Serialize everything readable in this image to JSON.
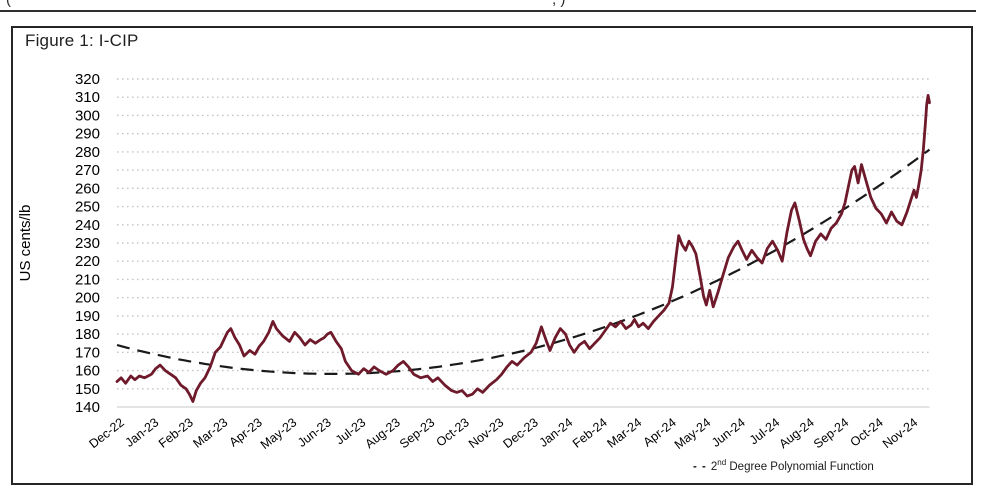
{
  "top_fragments": {
    "left": "(",
    "mid": ", )"
  },
  "figure": {
    "title": "Figure 1: I-CIP"
  },
  "legend": {
    "dash": "- -",
    "prefix": "2",
    "sup": "nd",
    "rest": " Degree Polynomial Function"
  },
  "colors": {
    "series": "#6e1a2b",
    "trend": "#1a1a1a",
    "grid": "#c6c6c6",
    "axis": "#d2d2d2",
    "text": "#000000"
  },
  "chart_data": {
    "type": "line",
    "title": "Figure 1: I-CIP",
    "xlabel": "",
    "ylabel": "US cents/lb",
    "ylim": [
      140,
      320
    ],
    "y_tick_step": 10,
    "y_ticks": [
      320,
      310,
      300,
      290,
      280,
      270,
      260,
      250,
      240,
      230,
      220,
      210,
      200,
      190,
      180,
      170,
      160,
      150,
      140
    ],
    "x_labels": [
      "Dec-22",
      "Jan-23",
      "Feb-23",
      "Mar-23",
      "Apr-23",
      "May-23",
      "Jun-23",
      "Jul-23",
      "Aug-23",
      "Sep-23",
      "Oct-23",
      "Nov-23",
      "Dec-23",
      "Jan-24",
      "Feb-24",
      "Mar-24",
      "Apr-24",
      "May-24",
      "Jun-24",
      "Jul-24",
      "Aug-24",
      "Sep-24",
      "Oct-24",
      "Nov-24"
    ],
    "grid": "dotted-horizontal",
    "legend_position": "bottom-right",
    "series": [
      {
        "name": "I-CIP",
        "style": "solid",
        "points": [
          [
            0,
            154
          ],
          [
            0.12,
            156
          ],
          [
            0.25,
            153
          ],
          [
            0.4,
            157
          ],
          [
            0.52,
            155
          ],
          [
            0.65,
            157
          ],
          [
            0.8,
            156
          ],
          [
            0.9,
            157
          ],
          [
            1,
            158
          ],
          [
            1.12,
            161
          ],
          [
            1.25,
            163
          ],
          [
            1.4,
            160
          ],
          [
            1.55,
            158
          ],
          [
            1.7,
            156
          ],
          [
            1.85,
            152
          ],
          [
            2,
            150
          ],
          [
            2.1,
            147
          ],
          [
            2.2,
            143
          ],
          [
            2.3,
            149
          ],
          [
            2.42,
            153
          ],
          [
            2.55,
            156
          ],
          [
            2.7,
            162
          ],
          [
            2.85,
            170
          ],
          [
            3,
            173
          ],
          [
            3.1,
            177
          ],
          [
            3.2,
            181
          ],
          [
            3.3,
            183
          ],
          [
            3.42,
            178
          ],
          [
            3.55,
            174
          ],
          [
            3.68,
            168
          ],
          [
            3.85,
            171
          ],
          [
            4,
            169
          ],
          [
            4.12,
            173
          ],
          [
            4.25,
            176
          ],
          [
            4.4,
            181
          ],
          [
            4.52,
            187
          ],
          [
            4.62,
            183
          ],
          [
            4.8,
            179
          ],
          [
            5,
            176
          ],
          [
            5.15,
            181
          ],
          [
            5.3,
            178
          ],
          [
            5.45,
            174
          ],
          [
            5.6,
            177
          ],
          [
            5.75,
            175
          ],
          [
            5.9,
            177
          ],
          [
            6,
            178
          ],
          [
            6.1,
            180
          ],
          [
            6.2,
            181
          ],
          [
            6.35,
            176
          ],
          [
            6.5,
            172
          ],
          [
            6.62,
            165
          ],
          [
            6.8,
            160
          ],
          [
            7,
            158
          ],
          [
            7.15,
            161
          ],
          [
            7.3,
            159
          ],
          [
            7.45,
            162
          ],
          [
            7.6,
            160
          ],
          [
            7.8,
            158
          ],
          [
            8,
            160
          ],
          [
            8.15,
            163
          ],
          [
            8.3,
            165
          ],
          [
            8.45,
            162
          ],
          [
            8.6,
            158
          ],
          [
            8.8,
            156
          ],
          [
            9,
            157
          ],
          [
            9.15,
            154
          ],
          [
            9.3,
            156
          ],
          [
            9.5,
            152
          ],
          [
            9.7,
            149
          ],
          [
            9.85,
            148
          ],
          [
            10,
            149
          ],
          [
            10.15,
            146
          ],
          [
            10.3,
            147
          ],
          [
            10.45,
            150
          ],
          [
            10.6,
            148
          ],
          [
            10.8,
            152
          ],
          [
            11,
            155
          ],
          [
            11.15,
            158
          ],
          [
            11.3,
            162
          ],
          [
            11.45,
            165
          ],
          [
            11.6,
            163
          ],
          [
            11.8,
            167
          ],
          [
            12,
            170
          ],
          [
            12.15,
            175
          ],
          [
            12.3,
            184
          ],
          [
            12.45,
            176
          ],
          [
            12.55,
            171
          ],
          [
            12.7,
            178
          ],
          [
            12.85,
            183
          ],
          [
            13,
            180
          ],
          [
            13.12,
            174
          ],
          [
            13.25,
            170
          ],
          [
            13.4,
            174
          ],
          [
            13.55,
            176
          ],
          [
            13.7,
            172
          ],
          [
            13.85,
            175
          ],
          [
            14,
            178
          ],
          [
            14.15,
            182
          ],
          [
            14.3,
            186
          ],
          [
            14.45,
            184
          ],
          [
            14.6,
            187
          ],
          [
            14.75,
            183
          ],
          [
            14.9,
            185
          ],
          [
            15,
            188
          ],
          [
            15.12,
            184
          ],
          [
            15.25,
            186
          ],
          [
            15.4,
            183
          ],
          [
            15.55,
            187
          ],
          [
            15.7,
            190
          ],
          [
            15.85,
            193
          ],
          [
            16,
            197
          ],
          [
            16.1,
            206
          ],
          [
            16.2,
            222
          ],
          [
            16.28,
            234
          ],
          [
            16.38,
            229
          ],
          [
            16.48,
            226
          ],
          [
            16.58,
            231
          ],
          [
            16.68,
            228
          ],
          [
            16.78,
            224
          ],
          [
            16.9,
            212
          ],
          [
            17,
            201
          ],
          [
            17.08,
            196
          ],
          [
            17.18,
            204
          ],
          [
            17.28,
            195
          ],
          [
            17.42,
            203
          ],
          [
            17.56,
            212
          ],
          [
            17.72,
            222
          ],
          [
            17.88,
            228
          ],
          [
            18,
            231
          ],
          [
            18.12,
            226
          ],
          [
            18.25,
            221
          ],
          [
            18.4,
            226
          ],
          [
            18.55,
            222
          ],
          [
            18.7,
            219
          ],
          [
            18.85,
            227
          ],
          [
            19,
            231
          ],
          [
            19.15,
            226
          ],
          [
            19.28,
            220
          ],
          [
            19.42,
            236
          ],
          [
            19.55,
            248
          ],
          [
            19.65,
            252
          ],
          [
            19.78,
            242
          ],
          [
            19.9,
            232
          ],
          [
            20,
            227
          ],
          [
            20.1,
            223
          ],
          [
            20.25,
            231
          ],
          [
            20.4,
            235
          ],
          [
            20.55,
            232
          ],
          [
            20.7,
            238
          ],
          [
            20.85,
            241
          ],
          [
            21,
            246
          ],
          [
            21.1,
            252
          ],
          [
            21.2,
            261
          ],
          [
            21.3,
            270
          ],
          [
            21.38,
            272
          ],
          [
            21.48,
            263
          ],
          [
            21.58,
            273
          ],
          [
            21.7,
            265
          ],
          [
            21.85,
            255
          ],
          [
            22,
            249
          ],
          [
            22.15,
            246
          ],
          [
            22.3,
            241
          ],
          [
            22.45,
            247
          ],
          [
            22.6,
            242
          ],
          [
            22.75,
            240
          ],
          [
            22.9,
            247
          ],
          [
            23,
            253
          ],
          [
            23.1,
            259
          ],
          [
            23.17,
            255
          ],
          [
            23.24,
            262
          ],
          [
            23.31,
            270
          ],
          [
            23.37,
            281
          ],
          [
            23.43,
            295
          ],
          [
            23.47,
            306
          ],
          [
            23.51,
            311
          ],
          [
            23.55,
            307
          ]
        ]
      }
    ],
    "trend": {
      "name": "2nd Degree Polynomial Function",
      "style": "dashed",
      "coefficients": {
        "a": 0.41,
        "b": -5.1,
        "c": 174
      },
      "t_range": [
        0,
        23.55
      ]
    }
  }
}
